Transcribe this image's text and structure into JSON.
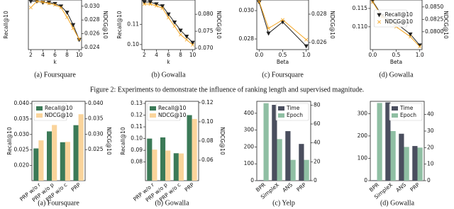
{
  "chart_data": [
    {
      "type": "line",
      "caption": "(a) Foursquare",
      "xlabel": "k",
      "ylabel": "Recall@10",
      "y2label": "NDCG@10",
      "x": [
        2,
        3,
        4,
        5,
        6,
        7,
        8,
        9,
        10
      ],
      "xlim": [
        1.6,
        10.4
      ],
      "xticks": [
        2,
        4,
        6,
        8,
        10
      ],
      "ylim": [
        0.0235,
        0.0275
      ],
      "y2lim": [
        0.0237,
        0.0309
      ],
      "y2ticks": [
        0.024,
        0.026,
        0.028,
        {
          "value": 0.03,
          "label": "0.030"
        }
      ],
      "series": [
        {
          "name": "Recall@10",
          "color": "#222222",
          "marker": "v",
          "values": [
            0.0274,
            0.0274,
            0.0273,
            0.0273,
            0.0272,
            0.027,
            0.0265,
            0.0255,
            0.0243
          ]
        },
        {
          "name": "NDCG@10",
          "color": "#f5a623",
          "marker": "x",
          "axis": "y2",
          "values": [
            0.0298,
            0.0307,
            0.0306,
            0.0304,
            0.0302,
            0.0298,
            0.0284,
            0.0268,
            0.0252
          ]
        }
      ]
    },
    {
      "type": "line",
      "caption": "(b) Gowalla",
      "xlabel": "k",
      "ylabel": "Recall@10",
      "y2label": "NDCG@10",
      "x": [
        2,
        3,
        4,
        5,
        6,
        7,
        8,
        9,
        10
      ],
      "xlim": [
        1.6,
        10.4
      ],
      "xticks": [
        2,
        4,
        6,
        8,
        10
      ],
      "ylim": [
        0.0975,
        0.122
      ],
      "yticks": [
        {
          "value": 0.1,
          "label": "0.10"
        },
        0.11
      ],
      "y2lim": [
        0.0696,
        0.0842
      ],
      "y2ticks": [
        {
          "value": 0.07,
          "label": "0.070"
        },
        0.075,
        {
          "value": 0.08,
          "label": "0.080"
        }
      ],
      "series": [
        {
          "name": "Recall@10",
          "color": "#222222",
          "marker": "v",
          "values": [
            0.121,
            0.121,
            0.12,
            0.119,
            0.115,
            0.111,
            0.107,
            0.104,
            0.101
          ]
        },
        {
          "name": "NDCG@10",
          "color": "#f5a623",
          "marker": "x",
          "axis": "y2",
          "values": [
            0.083,
            0.083,
            0.0825,
            0.0818,
            0.079,
            0.0765,
            0.074,
            0.0725,
            0.071
          ]
        }
      ]
    },
    {
      "type": "line",
      "caption": "(c) Foursquare",
      "xlabel": "Beta",
      "y2label": "NDCG@10",
      "x": [
        0,
        0.2,
        0.5,
        1
      ],
      "xlim": [
        -0.05,
        1.05
      ],
      "xticks": [
        {
          "value": 0,
          "label": "0.0"
        },
        0.5,
        {
          "value": 1,
          "label": "1.0"
        }
      ],
      "ylim": [
        0.02725,
        0.03075
      ],
      "yticks": [
        0.028,
        {
          "value": 0.03,
          "label": "0.030"
        }
      ],
      "y2lim": [
        0.0255,
        0.029
      ],
      "y2ticks": [
        0.026,
        0.028
      ],
      "series": [
        {
          "name": "Recall@10",
          "color": "#222222",
          "marker": "v",
          "values": [
            0.0306,
            0.0284,
            0.0292,
            0.0275
          ]
        },
        {
          "name": "NDCG@10",
          "color": "#f5a623",
          "marker": "x",
          "axis": "y2",
          "values": [
            0.0289,
            0.027,
            0.0276,
            0.0262
          ]
        }
      ]
    },
    {
      "type": "line",
      "caption": "(d) Gowalla",
      "xlabel": "Beta",
      "y2label": "NDCG@10",
      "legend": "top-center",
      "x": [
        0,
        0.2,
        0.5,
        0.8,
        1
      ],
      "xlim": [
        -0.05,
        1.05
      ],
      "xticks": [
        {
          "value": 0,
          "label": "0.0"
        },
        0.5,
        {
          "value": 1,
          "label": "1.0"
        }
      ],
      "ylim": [
        0.1038,
        0.1173
      ],
      "yticks": [
        {
          "value": 0.11,
          "label": "0.110"
        },
        0.115
      ],
      "y2lim": [
        0.0764,
        0.0864
      ],
      "y2ticks": [
        {
          "value": 0.08,
          "label": "0.0800"
        },
        0.0825,
        {
          "value": 0.085,
          "label": "0.0850"
        }
      ],
      "series": [
        {
          "name": "Recall@10",
          "color": "#222222",
          "marker": "v",
          "values": [
            0.117,
            0.113,
            0.111,
            0.108,
            0.105
          ]
        },
        {
          "name": "NDCG@10",
          "color": "#f5a623",
          "marker": "x",
          "axis": "y2",
          "values": [
            0.086,
            0.083,
            0.081,
            0.079,
            0.077
          ]
        }
      ]
    },
    {
      "type": "bar",
      "caption": "(a) Foursquare",
      "ylabel": "Recall@10",
      "y2label": "NDCG@10",
      "legend": "top-left",
      "categories": [
        "PRP w/o r",
        "PRP w/o p",
        "PRP w/o c",
        "PRP"
      ],
      "ylim": [
        0.0151,
        0.0407
      ],
      "yticks": [
        {
          "value": 0.02,
          "label": "0.020"
        },
        0.025,
        {
          "value": 0.03,
          "label": "0.030"
        },
        0.035,
        {
          "value": 0.04,
          "label": "0.040"
        }
      ],
      "y2lim": [
        0.0149,
        0.0407
      ],
      "y2ticks": [
        0.025,
        {
          "value": 0.03,
          "label": "0.030"
        },
        0.035,
        {
          "value": 0.04,
          "label": "0.040"
        }
      ],
      "series": [
        {
          "name": "Recall@10",
          "color": "#3b7a57",
          "values": [
            0.0255,
            0.031,
            0.0275,
            0.033
          ]
        },
        {
          "name": "NDCG@10",
          "color": "#fad49b",
          "axis": "y2",
          "values": [
            0.028,
            0.033,
            0.0275,
            0.0365
          ]
        }
      ]
    },
    {
      "type": "bar",
      "caption": "(b) Gowalla",
      "ylabel": "Recall@10",
      "y2label": "NDCG@10",
      "legend": "top-left",
      "categories": [
        "PRP w/o r",
        "PRP w/o p",
        "PRP w/o c",
        "PRP"
      ],
      "ylim": [
        0.0641,
        0.1318
      ],
      "yticks": [
        0.08,
        0.09,
        {
          "value": 0.1,
          "label": "0.10"
        },
        0.11,
        0.12,
        0.13
      ],
      "y2lim": [
        0.0386,
        0.1214
      ],
      "y2ticks": [
        0.06,
        0.08,
        {
          "value": 0.1,
          "label": "0.10"
        },
        0.12
      ],
      "series": [
        {
          "name": "Recall@10",
          "color": "#3b7a57",
          "values": [
            0.1,
            0.101,
            0.0875,
            0.12
          ]
        },
        {
          "name": "NDCG@10",
          "color": "#fad49b",
          "axis": "y2",
          "values": [
            0.071,
            0.07,
            0.067,
            0.103
          ]
        }
      ]
    },
    {
      "type": "bar",
      "caption": "(c) Yelp",
      "legend": "top-right",
      "categories": [
        "BPR",
        "SimpleX",
        "ANS",
        "PRP"
      ],
      "ylim": [
        0,
        471
      ],
      "yticks": [
        0,
        100,
        200,
        300,
        400
      ],
      "y2lim": [
        0,
        84
      ],
      "y2ticks": [
        0,
        20,
        40,
        60,
        80
      ],
      "series": [
        {
          "name": "Time",
          "color": "#4a4e5e",
          "values": [
            3,
            450,
            294,
            218
          ]
        },
        {
          "name": "Epoch",
          "color": "#8fbfa3",
          "axis": "y2",
          "values": [
            82,
            44,
            22,
            22
          ]
        }
      ]
    },
    {
      "type": "bar",
      "caption": "(d) Gowalla",
      "legend": "top-right",
      "categories": [
        "BPR",
        "SimpleX",
        "ANS",
        "PRP"
      ],
      "ylim": [
        0,
        355
      ],
      "yticks": [
        0,
        100,
        200,
        300
      ],
      "y2lim": [
        0,
        48
      ],
      "y2ticks": [
        0,
        10,
        20,
        30,
        40
      ],
      "series": [
        {
          "name": "Time",
          "color": "#4a4e5e",
          "values": [
            2,
            350,
            210,
            155
          ]
        },
        {
          "name": "Epoch",
          "color": "#8fbfa3",
          "axis": "y2",
          "values": [
            47,
            30,
            20.4,
            20
          ]
        }
      ]
    }
  ],
  "figure_caption": "Figure 2: Experiments to demonstrate the influence of ranking length and supervised magnitude."
}
